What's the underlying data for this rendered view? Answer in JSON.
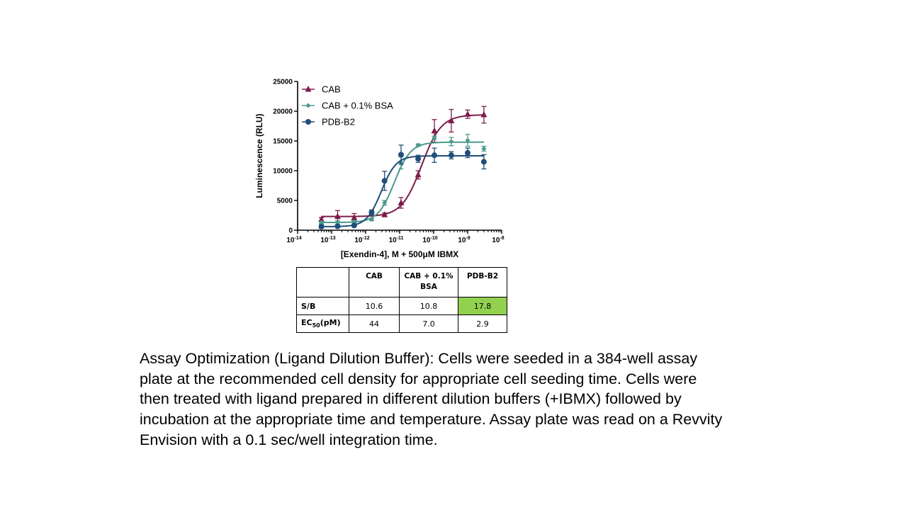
{
  "chart_data": {
    "type": "line",
    "xlabel": "[Exendin-4], M + 500μM IBMX",
    "ylabel": "Luminescence (RLU)",
    "xscale": "log",
    "xlim": [
      1e-14,
      1e-08
    ],
    "ylim": [
      0,
      25000
    ],
    "yticks": [
      0,
      5000,
      10000,
      15000,
      20000,
      25000
    ],
    "ytick_labels": [
      "0",
      "5000",
      "10000",
      "15000",
      "20000",
      "25000"
    ],
    "xticks": [
      {
        "base": "10",
        "exp": "-14"
      },
      {
        "base": "10",
        "exp": "-13"
      },
      {
        "base": "10",
        "exp": "-12"
      },
      {
        "base": "10",
        "exp": "-11"
      },
      {
        "base": "10",
        "exp": "-10"
      },
      {
        "base": "10",
        "exp": "-9"
      },
      {
        "base": "10",
        "exp": "-8"
      }
    ],
    "legend_position": "top-left",
    "series": [
      {
        "name": "CAB",
        "marker": "triangle",
        "color": "#7b1c4a",
        "fit": {
          "bottom": 2300,
          "top": 19400,
          "ec50": 4.4e-11,
          "hill": 1.5
        },
        "points": [
          {
            "x": 5e-14,
            "y": 1800,
            "err": 300
          },
          {
            "x": 1.5e-13,
            "y": 2300,
            "err": 1000
          },
          {
            "x": 4.6e-13,
            "y": 2100,
            "err": 700
          },
          {
            "x": 3.6e-12,
            "y": 2600,
            "err": 300
          },
          {
            "x": 1.1e-11,
            "y": 4600,
            "err": 900
          },
          {
            "x": 3.5e-11,
            "y": 9300,
            "err": 700
          },
          {
            "x": 1.05e-10,
            "y": 16700,
            "err": 1900
          },
          {
            "x": 3.3e-10,
            "y": 18400,
            "err": 1900
          },
          {
            "x": 1e-09,
            "y": 19500,
            "err": 700
          },
          {
            "x": 3e-09,
            "y": 19400,
            "err": 1400
          }
        ]
      },
      {
        "name": "CAB + 0.1% BSA",
        "marker": "diamond",
        "color": "#4a9a8c",
        "fit": {
          "bottom": 1300,
          "top": 14800,
          "ec50": 7e-12,
          "hill": 1.8
        },
        "points": [
          {
            "x": 5e-14,
            "y": 1300,
            "err": 200
          },
          {
            "x": 1.5e-13,
            "y": 1300,
            "err": 300
          },
          {
            "x": 4.6e-13,
            "y": 1400,
            "err": 200
          },
          {
            "x": 1.5e-12,
            "y": 1800,
            "err": 200
          },
          {
            "x": 3.6e-12,
            "y": 4600,
            "err": 400
          },
          {
            "x": 1.1e-11,
            "y": 11300,
            "err": 1000
          },
          {
            "x": 3.5e-11,
            "y": 14300,
            "err": 200
          },
          {
            "x": 1.05e-10,
            "y": 15500,
            "err": 300
          },
          {
            "x": 3.3e-10,
            "y": 14900,
            "err": 700
          },
          {
            "x": 1e-09,
            "y": 15100,
            "err": 1000
          },
          {
            "x": 3e-09,
            "y": 13700,
            "err": 400
          }
        ]
      },
      {
        "name": "PDB-B2",
        "marker": "circle",
        "color": "#1f4e79",
        "fit": {
          "bottom": 600,
          "top": 12500,
          "ec50": 2.9e-12,
          "hill": 2.0
        },
        "points": [
          {
            "x": 5e-14,
            "y": 600,
            "err": 300
          },
          {
            "x": 1.5e-13,
            "y": 650,
            "err": 200
          },
          {
            "x": 4.6e-13,
            "y": 800,
            "err": 200
          },
          {
            "x": 1.5e-12,
            "y": 3000,
            "err": 400
          },
          {
            "x": 3.6e-12,
            "y": 8300,
            "err": 1600
          },
          {
            "x": 1.1e-11,
            "y": 12700,
            "err": 1600
          },
          {
            "x": 3.5e-11,
            "y": 12000,
            "err": 600
          },
          {
            "x": 1.05e-10,
            "y": 12600,
            "err": 1200
          },
          {
            "x": 3.3e-10,
            "y": 12600,
            "err": 600
          },
          {
            "x": 1e-09,
            "y": 13000,
            "err": 800
          },
          {
            "x": 3e-09,
            "y": 11500,
            "err": 1200
          }
        ]
      }
    ]
  },
  "table": {
    "headers": [
      "",
      "CAB",
      "CAB + 0.1% BSA",
      "PDB-B2"
    ],
    "header_line1": [
      "CAB",
      "CAB + 0.1%",
      "PDB-B2"
    ],
    "header_line2": [
      "",
      "BSA",
      ""
    ],
    "rows": [
      {
        "label": "S/B",
        "values": [
          "10.6",
          "10.8",
          "17.8"
        ]
      },
      {
        "label_main": "EC",
        "label_sub": "50",
        "label_tail": "(pM)",
        "values": [
          "44",
          "7.0",
          "2.9"
        ]
      }
    ],
    "highlight_color": "#92d050"
  },
  "caption": "Assay Optimization (Ligand Dilution Buffer): Cells were seeded in a 384-well assay plate at the recommended cell density for appropriate cell seeding time. Cells were then treated with ligand prepared in different dilution buffers (+IBMX) followed by incubation at the appropriate time and temperature. Assay plate was read on a Revvity Envision with a 0.1 sec/well integration time."
}
